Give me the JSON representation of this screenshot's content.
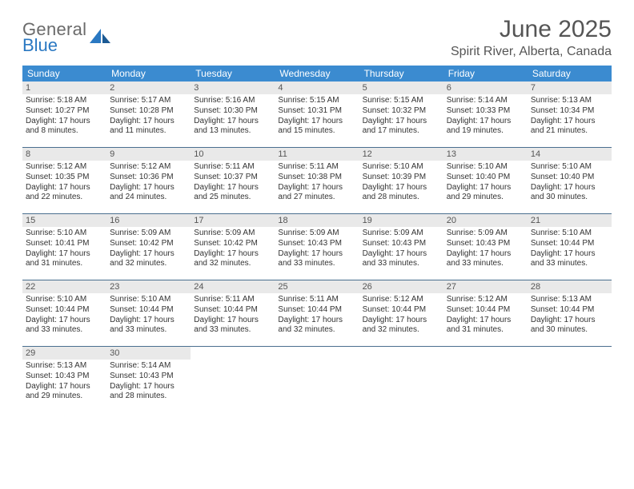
{
  "brand": {
    "top": "General",
    "bottom": "Blue"
  },
  "title": {
    "month": "June 2025",
    "location": "Spirit River, Alberta, Canada"
  },
  "colors": {
    "header_bg": "#3b8bd0",
    "daynum_bg": "#e9e9e9",
    "week_divider": "#4a6f8f",
    "brand_blue": "#2a78c2",
    "brand_gray": "#6a6a6a",
    "text": "#333333"
  },
  "weekdays": [
    "Sunday",
    "Monday",
    "Tuesday",
    "Wednesday",
    "Thursday",
    "Friday",
    "Saturday"
  ],
  "weeks": [
    [
      {
        "n": "1",
        "sr": "5:18 AM",
        "ss": "10:27 PM",
        "dl": "17 hours and 8 minutes."
      },
      {
        "n": "2",
        "sr": "5:17 AM",
        "ss": "10:28 PM",
        "dl": "17 hours and 11 minutes."
      },
      {
        "n": "3",
        "sr": "5:16 AM",
        "ss": "10:30 PM",
        "dl": "17 hours and 13 minutes."
      },
      {
        "n": "4",
        "sr": "5:15 AM",
        "ss": "10:31 PM",
        "dl": "17 hours and 15 minutes."
      },
      {
        "n": "5",
        "sr": "5:15 AM",
        "ss": "10:32 PM",
        "dl": "17 hours and 17 minutes."
      },
      {
        "n": "6",
        "sr": "5:14 AM",
        "ss": "10:33 PM",
        "dl": "17 hours and 19 minutes."
      },
      {
        "n": "7",
        "sr": "5:13 AM",
        "ss": "10:34 PM",
        "dl": "17 hours and 21 minutes."
      }
    ],
    [
      {
        "n": "8",
        "sr": "5:12 AM",
        "ss": "10:35 PM",
        "dl": "17 hours and 22 minutes."
      },
      {
        "n": "9",
        "sr": "5:12 AM",
        "ss": "10:36 PM",
        "dl": "17 hours and 24 minutes."
      },
      {
        "n": "10",
        "sr": "5:11 AM",
        "ss": "10:37 PM",
        "dl": "17 hours and 25 minutes."
      },
      {
        "n": "11",
        "sr": "5:11 AM",
        "ss": "10:38 PM",
        "dl": "17 hours and 27 minutes."
      },
      {
        "n": "12",
        "sr": "5:10 AM",
        "ss": "10:39 PM",
        "dl": "17 hours and 28 minutes."
      },
      {
        "n": "13",
        "sr": "5:10 AM",
        "ss": "10:40 PM",
        "dl": "17 hours and 29 minutes."
      },
      {
        "n": "14",
        "sr": "5:10 AM",
        "ss": "10:40 PM",
        "dl": "17 hours and 30 minutes."
      }
    ],
    [
      {
        "n": "15",
        "sr": "5:10 AM",
        "ss": "10:41 PM",
        "dl": "17 hours and 31 minutes."
      },
      {
        "n": "16",
        "sr": "5:09 AM",
        "ss": "10:42 PM",
        "dl": "17 hours and 32 minutes."
      },
      {
        "n": "17",
        "sr": "5:09 AM",
        "ss": "10:42 PM",
        "dl": "17 hours and 32 minutes."
      },
      {
        "n": "18",
        "sr": "5:09 AM",
        "ss": "10:43 PM",
        "dl": "17 hours and 33 minutes."
      },
      {
        "n": "19",
        "sr": "5:09 AM",
        "ss": "10:43 PM",
        "dl": "17 hours and 33 minutes."
      },
      {
        "n": "20",
        "sr": "5:09 AM",
        "ss": "10:43 PM",
        "dl": "17 hours and 33 minutes."
      },
      {
        "n": "21",
        "sr": "5:10 AM",
        "ss": "10:44 PM",
        "dl": "17 hours and 33 minutes."
      }
    ],
    [
      {
        "n": "22",
        "sr": "5:10 AM",
        "ss": "10:44 PM",
        "dl": "17 hours and 33 minutes."
      },
      {
        "n": "23",
        "sr": "5:10 AM",
        "ss": "10:44 PM",
        "dl": "17 hours and 33 minutes."
      },
      {
        "n": "24",
        "sr": "5:11 AM",
        "ss": "10:44 PM",
        "dl": "17 hours and 33 minutes."
      },
      {
        "n": "25",
        "sr": "5:11 AM",
        "ss": "10:44 PM",
        "dl": "17 hours and 32 minutes."
      },
      {
        "n": "26",
        "sr": "5:12 AM",
        "ss": "10:44 PM",
        "dl": "17 hours and 32 minutes."
      },
      {
        "n": "27",
        "sr": "5:12 AM",
        "ss": "10:44 PM",
        "dl": "17 hours and 31 minutes."
      },
      {
        "n": "28",
        "sr": "5:13 AM",
        "ss": "10:44 PM",
        "dl": "17 hours and 30 minutes."
      }
    ],
    [
      {
        "n": "29",
        "sr": "5:13 AM",
        "ss": "10:43 PM",
        "dl": "17 hours and 29 minutes."
      },
      {
        "n": "30",
        "sr": "5:14 AM",
        "ss": "10:43 PM",
        "dl": "17 hours and 28 minutes."
      },
      null,
      null,
      null,
      null,
      null
    ]
  ],
  "labels": {
    "sunrise": "Sunrise: ",
    "sunset": "Sunset: ",
    "daylight": "Daylight: "
  }
}
